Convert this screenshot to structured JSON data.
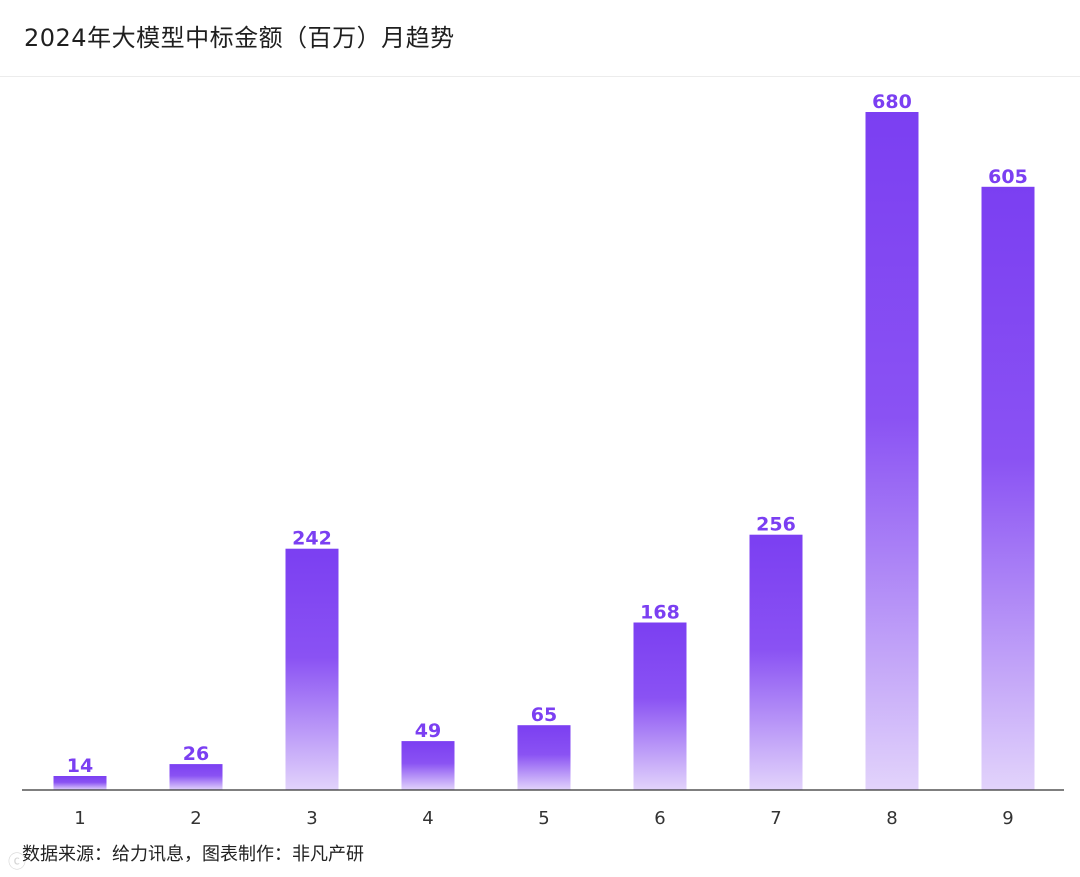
{
  "title": "2024年大模型中标金额（百万）月趋势",
  "source": "数据来源：给力讯息，图表制作：非凡产研",
  "colors": {
    "bar_top": "#7b3ff2",
    "bar_bottom": "#e2d3fb",
    "value_label": "#7b3ff2",
    "axis": "#333333"
  },
  "chart_data": {
    "type": "bar",
    "title": "2024年大模型中标金额（百万）月趋势",
    "xlabel": "",
    "ylabel": "",
    "categories": [
      "1",
      "2",
      "3",
      "4",
      "5",
      "6",
      "7",
      "8",
      "9"
    ],
    "values": [
      14,
      26,
      242,
      49,
      65,
      168,
      256,
      680,
      605
    ],
    "ylim": [
      0,
      700
    ],
    "grid": false,
    "data_labels": true
  }
}
